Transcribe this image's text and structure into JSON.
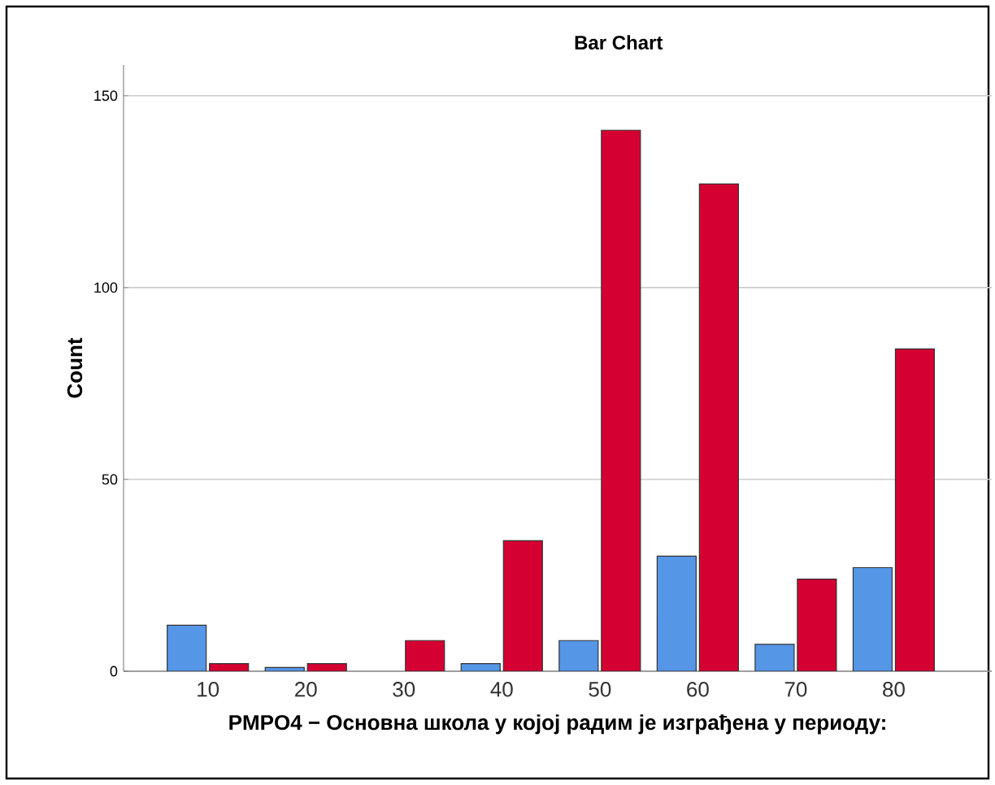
{
  "chart_data": {
    "type": "bar",
    "title": "Bar Chart",
    "xlabel": "PMPO4 − Основна школа у којој радим је изграђена у периоду:",
    "ylabel": "Count",
    "categories": [
      "10",
      "20",
      "30",
      "40",
      "50",
      "60",
      "70",
      "80"
    ],
    "series": [
      {
        "color": "#5596e6",
        "values": [
          12,
          1,
          0,
          2,
          8,
          30,
          7,
          27
        ]
      },
      {
        "color": "#d50032",
        "values": [
          2,
          2,
          8,
          34,
          141,
          127,
          24,
          84
        ]
      }
    ],
    "ylim": [
      0,
      158
    ],
    "yticks": [
      0,
      50,
      100,
      150
    ],
    "grid": "y"
  }
}
